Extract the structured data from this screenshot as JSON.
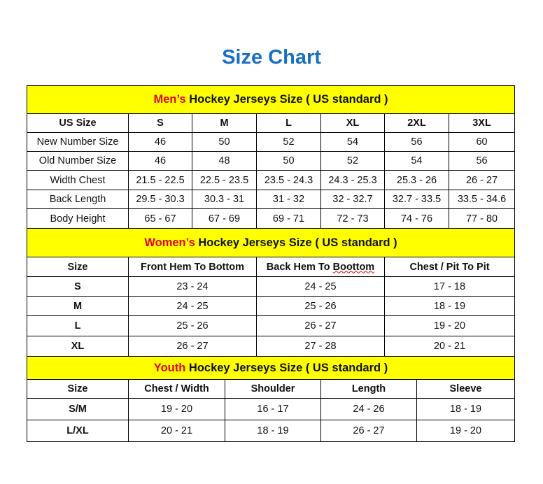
{
  "title": "Size Chart",
  "colors": {
    "title": "#1a6fc0",
    "header_bg": "#ffff00",
    "highlight": "#e8000b"
  },
  "sections": [
    {
      "highlight": "Men’s",
      "heading": " Hockey Jerseys Size ( US standard )",
      "columns": [
        "US Size",
        "S",
        "M",
        "L",
        "XL",
        "2XL",
        "3XL"
      ],
      "rows": [
        [
          "New Number Size",
          "46",
          "50",
          "52",
          "54",
          "56",
          "60"
        ],
        [
          "Old Number Size",
          "46",
          "48",
          "50",
          "52",
          "54",
          "56"
        ],
        [
          "Width Chest",
          "21.5 - 22.5",
          "22.5 - 23.5",
          "23.5 - 24.3",
          "24.3 - 25.3",
          "25.3 - 26",
          "26 - 27"
        ],
        [
          "Back Length",
          "29.5 - 30.3",
          "30.3 - 31",
          "31 - 32",
          "32 - 32.7",
          "32.7 - 33.5",
          "33.5 - 34.6"
        ],
        [
          "Body Height",
          "65 - 67",
          "67 - 69",
          "69 - 71",
          "72 - 73",
          "74 - 76",
          "77 - 80"
        ]
      ]
    },
    {
      "highlight": "Women’s",
      "heading": " Hockey Jerseys Size ( US standard )",
      "columns": [
        "Size",
        "Front Hem To Bottom",
        "Back Hem To Boottom",
        "Chest / Pit To Pit"
      ],
      "rows": [
        [
          "S",
          "23 - 24",
          "24 - 25",
          "17 - 18"
        ],
        [
          "M",
          "24 - 25",
          "25 - 26",
          "18 - 19"
        ],
        [
          "L",
          "25 - 26",
          "26 - 27",
          "19 - 20"
        ],
        [
          "XL",
          "26 - 27",
          "27 - 28",
          "20 - 21"
        ]
      ]
    },
    {
      "highlight": "Youth",
      "heading": " Hockey Jerseys Size ( US standard )",
      "columns": [
        "Size",
        "Chest / Width",
        "Shoulder",
        "Length",
        "Sleeve"
      ],
      "rows": [
        [
          "S/M",
          "19 - 20",
          "16 - 17",
          "24 - 26",
          "18 - 19"
        ],
        [
          "L/XL",
          "20 - 21",
          "18 - 19",
          "26 - 27",
          "19 - 20"
        ]
      ]
    }
  ]
}
